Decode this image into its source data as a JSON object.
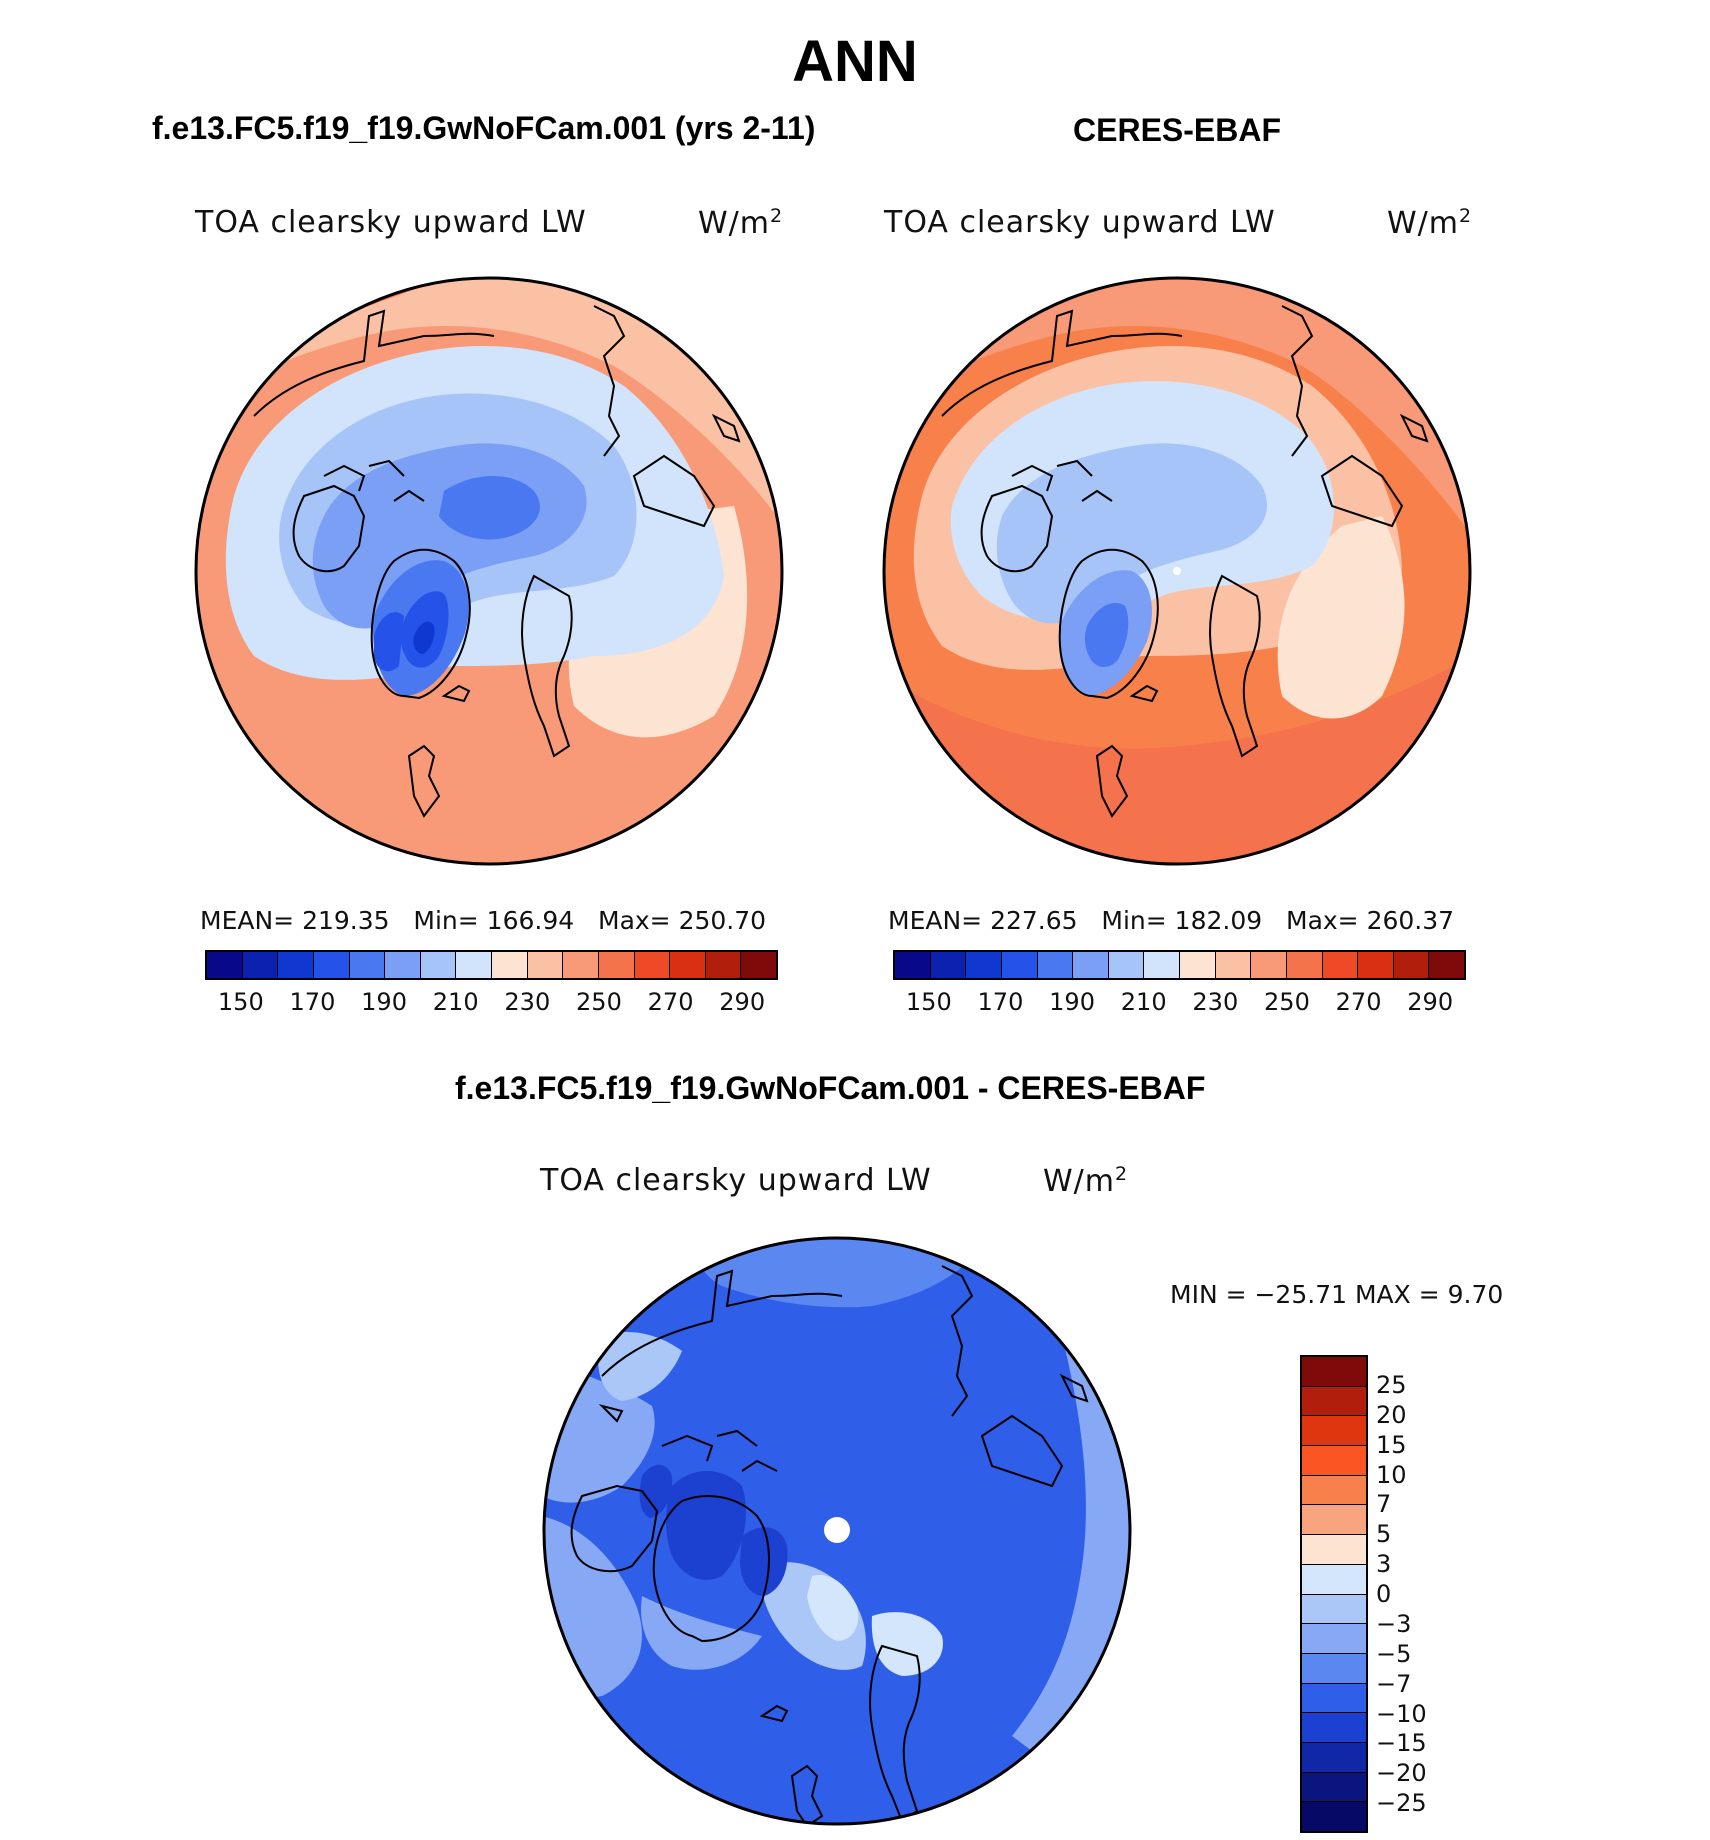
{
  "main_title": "ANN",
  "panels": {
    "model": {
      "case_title": "f.e13.FC5.f19_f19.GwNoFCam.001 (yrs 2-11)",
      "variable": "TOA clearsky upward LW",
      "units_base": "W/m",
      "units_exp": "2",
      "mean_label": "MEAN=",
      "mean": "219.35",
      "min_label": "Min=",
      "min": "166.94",
      "max_label": "Max=",
      "max": "250.70"
    },
    "obs": {
      "case_title": "CERES-EBAF",
      "variable": "TOA clearsky upward LW",
      "units_base": "W/m",
      "units_exp": "2",
      "mean_label": "MEAN=",
      "mean": "227.65",
      "min_label": "Min=",
      "min": "182.09",
      "max_label": "Max=",
      "max": "260.37"
    },
    "diff": {
      "case_title": "f.e13.FC5.f19_f19.GwNoFCam.001 - CERES-EBAF",
      "variable": "TOA clearsky upward LW",
      "units_base": "W/m",
      "units_exp": "2",
      "minmax": "MIN = −25.71 MAX =    9.70"
    }
  },
  "abs_colorbar": {
    "colors": [
      "#08088a",
      "#0b22b0",
      "#1038d0",
      "#2553ea",
      "#4a78f0",
      "#7a9ff4",
      "#a7c4f8",
      "#d1e4fb",
      "#fde3d2",
      "#fbc1a5",
      "#f89a77",
      "#f4734c",
      "#ee4a28",
      "#d92f12",
      "#b11f0c",
      "#7e0a0a"
    ],
    "ticks": [
      "150",
      "170",
      "190",
      "210",
      "230",
      "250",
      "270",
      "290"
    ]
  },
  "diff_colorbar": {
    "colors": [
      "#7e0a0a",
      "#b11f0c",
      "#e0360f",
      "#fa5522",
      "#f8804a",
      "#f8a57f",
      "#fde3d2",
      "#d4e6fb",
      "#aac7f8",
      "#86a8f5",
      "#5a87f0",
      "#2f5ee8",
      "#1c40d0",
      "#1028a6",
      "#0a1580"
    ],
    "ticks": [
      "25",
      "20",
      "15",
      "10",
      "7",
      "5",
      "3",
      "0",
      "−3",
      "−5",
      "−7",
      "−10",
      "−15",
      "−20",
      "−25"
    ]
  }
}
